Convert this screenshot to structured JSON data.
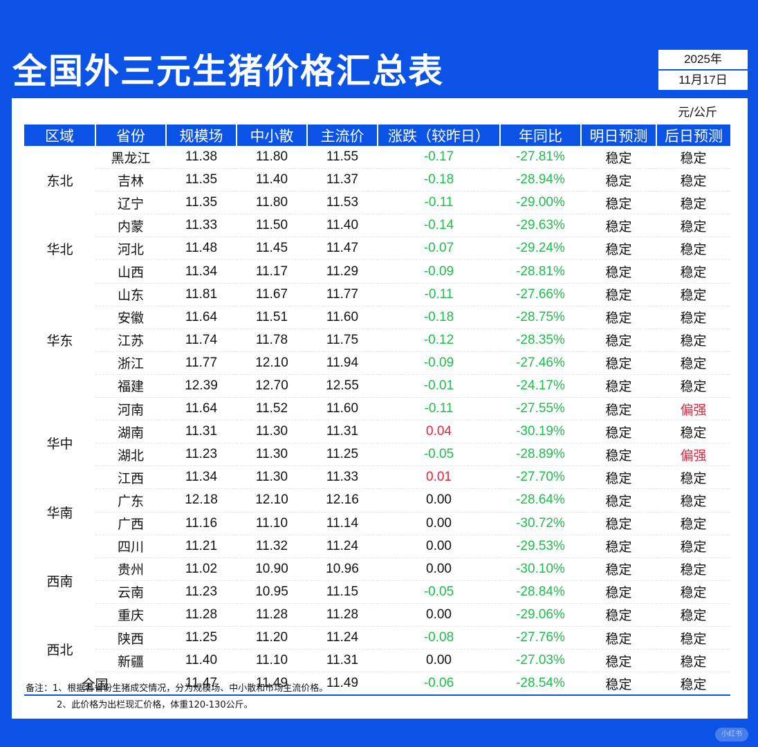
{
  "title": "全国外三元生猪价格汇总表",
  "date": {
    "year": "2025年",
    "day": "11月17日"
  },
  "unit": "元/公斤",
  "headers": [
    "区域",
    "省份",
    "规模场",
    "中小散",
    "主流价",
    "涨跌（较昨日）",
    "年同比",
    "明日预测",
    "后日预测"
  ],
  "regions": [
    {
      "name": "东北",
      "rows": 3
    },
    {
      "name": "华北",
      "rows": 3
    },
    {
      "name": "华东",
      "rows": 5
    },
    {
      "name": "华中",
      "rows": 4
    },
    {
      "name": "华南",
      "rows": 2
    },
    {
      "name": "西南",
      "rows": 4
    },
    {
      "name": "西北",
      "rows": 2
    }
  ],
  "rows": [
    {
      "province": "黑龙江",
      "large": "11.38",
      "small": "11.80",
      "main": "11.55",
      "change": "-0.17",
      "yoy": "-27.81%",
      "tomorrow": "稳定",
      "dayafter": "稳定"
    },
    {
      "province": "吉林",
      "large": "11.35",
      "small": "11.40",
      "main": "11.37",
      "change": "-0.18",
      "yoy": "-28.94%",
      "tomorrow": "稳定",
      "dayafter": "稳定"
    },
    {
      "province": "辽宁",
      "large": "11.35",
      "small": "11.80",
      "main": "11.53",
      "change": "-0.11",
      "yoy": "-29.00%",
      "tomorrow": "稳定",
      "dayafter": "稳定"
    },
    {
      "province": "内蒙",
      "large": "11.33",
      "small": "11.50",
      "main": "11.40",
      "change": "-0.14",
      "yoy": "-29.63%",
      "tomorrow": "稳定",
      "dayafter": "稳定"
    },
    {
      "province": "河北",
      "large": "11.48",
      "small": "11.45",
      "main": "11.47",
      "change": "-0.07",
      "yoy": "-29.24%",
      "tomorrow": "稳定",
      "dayafter": "稳定"
    },
    {
      "province": "山西",
      "large": "11.34",
      "small": "11.17",
      "main": "11.29",
      "change": "-0.09",
      "yoy": "-28.81%",
      "tomorrow": "稳定",
      "dayafter": "稳定"
    },
    {
      "province": "山东",
      "large": "11.81",
      "small": "11.67",
      "main": "11.77",
      "change": "-0.11",
      "yoy": "-27.66%",
      "tomorrow": "稳定",
      "dayafter": "稳定"
    },
    {
      "province": "安徽",
      "large": "11.64",
      "small": "11.51",
      "main": "11.60",
      "change": "-0.18",
      "yoy": "-28.75%",
      "tomorrow": "稳定",
      "dayafter": "稳定"
    },
    {
      "province": "江苏",
      "large": "11.74",
      "small": "11.78",
      "main": "11.75",
      "change": "-0.12",
      "yoy": "-28.35%",
      "tomorrow": "稳定",
      "dayafter": "稳定"
    },
    {
      "province": "浙江",
      "large": "11.77",
      "small": "12.10",
      "main": "11.94",
      "change": "-0.09",
      "yoy": "-27.46%",
      "tomorrow": "稳定",
      "dayafter": "稳定"
    },
    {
      "province": "福建",
      "large": "12.39",
      "small": "12.70",
      "main": "12.55",
      "change": "-0.01",
      "yoy": "-24.17%",
      "tomorrow": "稳定",
      "dayafter": "稳定"
    },
    {
      "province": "河南",
      "large": "11.64",
      "small": "11.52",
      "main": "11.60",
      "change": "-0.11",
      "yoy": "-27.55%",
      "tomorrow": "稳定",
      "dayafter": "偏强"
    },
    {
      "province": "湖南",
      "large": "11.31",
      "small": "11.30",
      "main": "11.31",
      "change": "0.04",
      "yoy": "-30.19%",
      "tomorrow": "稳定",
      "dayafter": "稳定"
    },
    {
      "province": "湖北",
      "large": "11.23",
      "small": "11.30",
      "main": "11.25",
      "change": "-0.05",
      "yoy": "-28.89%",
      "tomorrow": "稳定",
      "dayafter": "偏强"
    },
    {
      "province": "江西",
      "large": "11.34",
      "small": "11.30",
      "main": "11.33",
      "change": "0.01",
      "yoy": "-27.70%",
      "tomorrow": "稳定",
      "dayafter": "稳定"
    },
    {
      "province": "广东",
      "large": "12.18",
      "small": "12.10",
      "main": "12.16",
      "change": "0.00",
      "yoy": "-28.64%",
      "tomorrow": "稳定",
      "dayafter": "稳定"
    },
    {
      "province": "广西",
      "large": "11.16",
      "small": "11.10",
      "main": "11.14",
      "change": "0.00",
      "yoy": "-30.72%",
      "tomorrow": "稳定",
      "dayafter": "稳定"
    },
    {
      "province": "四川",
      "large": "11.21",
      "small": "11.32",
      "main": "11.24",
      "change": "0.00",
      "yoy": "-29.53%",
      "tomorrow": "稳定",
      "dayafter": "稳定"
    },
    {
      "province": "贵州",
      "large": "11.02",
      "small": "10.90",
      "main": "10.96",
      "change": "0.00",
      "yoy": "-30.10%",
      "tomorrow": "稳定",
      "dayafter": "稳定"
    },
    {
      "province": "云南",
      "large": "11.23",
      "small": "10.95",
      "main": "11.15",
      "change": "-0.05",
      "yoy": "-28.84%",
      "tomorrow": "稳定",
      "dayafter": "稳定"
    },
    {
      "province": "重庆",
      "large": "11.28",
      "small": "11.28",
      "main": "11.28",
      "change": "0.00",
      "yoy": "-29.06%",
      "tomorrow": "稳定",
      "dayafter": "稳定"
    },
    {
      "province": "陕西",
      "large": "11.25",
      "small": "11.20",
      "main": "11.24",
      "change": "-0.08",
      "yoy": "-27.76%",
      "tomorrow": "稳定",
      "dayafter": "稳定"
    },
    {
      "province": "新疆",
      "large": "11.40",
      "small": "11.10",
      "main": "11.31",
      "change": "0.00",
      "yoy": "-27.03%",
      "tomorrow": "稳定",
      "dayafter": "稳定"
    }
  ],
  "total": {
    "label": "全国",
    "large": "11.47",
    "small": "11.49",
    "main": "11.49",
    "change": "-0.06",
    "yoy": "-28.54%",
    "tomorrow": "稳定",
    "dayafter": "稳定"
  },
  "notes": [
    "备注：1、根据各省份生猪成交情况，分为规模场、中小散和市场主流价格。",
    "2、此价格为出栏现汇价格，体重120-130公斤。"
  ],
  "watermark": "小红书",
  "colors": {
    "brand": "#0a53e6",
    "up": "#e5243b",
    "down": "#1bbf4a"
  }
}
